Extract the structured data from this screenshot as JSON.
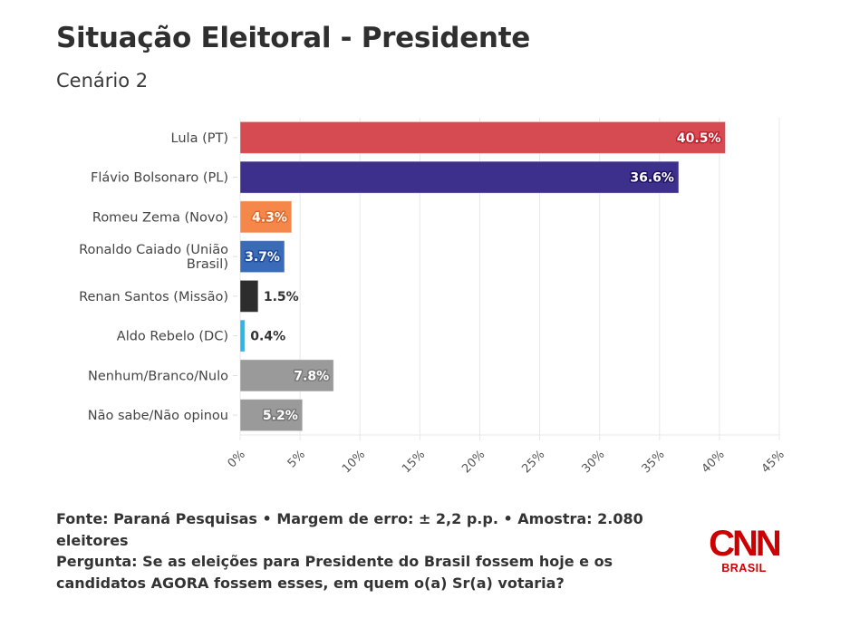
{
  "header": {
    "title": "Situação Eleitoral - Presidente",
    "subtitle": "Cenário 2"
  },
  "chart_data": {
    "type": "bar",
    "orientation": "horizontal",
    "title": "Situação Eleitoral - Presidente",
    "subtitle": "Cenário 2",
    "xlabel": "",
    "ylabel": "",
    "xlim": [
      0,
      45
    ],
    "grid": true,
    "x_ticks": [
      0,
      5,
      10,
      15,
      20,
      25,
      30,
      35,
      40,
      45
    ],
    "x_tick_labels": [
      "0%",
      "5%",
      "10%",
      "15%",
      "20%",
      "25%",
      "30%",
      "35%",
      "40%",
      "45%"
    ],
    "categories": [
      [
        "Lula (PT)"
      ],
      [
        "Flávio Bolsonaro (PL)"
      ],
      [
        "Romeu Zema (Novo)"
      ],
      [
        "Ronaldo Caiado (União",
        "Brasil)"
      ],
      [
        "Renan Santos (Missão)"
      ],
      [
        "Aldo Rebelo (DC)"
      ],
      [
        "Nenhum/Branco/Nulo"
      ],
      [
        "Não sabe/Não opinou"
      ]
    ],
    "values": [
      40.5,
      36.6,
      4.3,
      3.7,
      1.5,
      0.4,
      7.8,
      5.2
    ],
    "value_labels": [
      "40.5%",
      "36.6%",
      "4.3%",
      "3.7%",
      "1.5%",
      "0.4%",
      "7.8%",
      "5.2%"
    ],
    "colors": [
      "#d64a51",
      "#3d2f8c",
      "#f5874a",
      "#3a6bb8",
      "#2d2d2d",
      "#2eb4e8",
      "#9a9a9a",
      "#9a9a9a"
    ],
    "label_stroke": [
      "#c01f2a",
      "#1e1260",
      "#e06a2a",
      "#1f4a99",
      "",
      "",
      "#777777",
      "#777777"
    ],
    "label_inside": [
      true,
      true,
      true,
      true,
      false,
      false,
      true,
      true
    ]
  },
  "footer": {
    "source_line": "Fonte: Paraná Pesquisas • Margem de erro: ± 2,2 p.p. • Amostra: 2.080 eleitores",
    "question_line": "Pergunta: Se as eleições para Presidente do Brasil fossem hoje e os candidatos AGORA fossem esses, em quem o(a) Sr(a) votaria?"
  },
  "logo": {
    "name": "CNN",
    "sub": "BRASIL",
    "color": "#cc0000"
  }
}
